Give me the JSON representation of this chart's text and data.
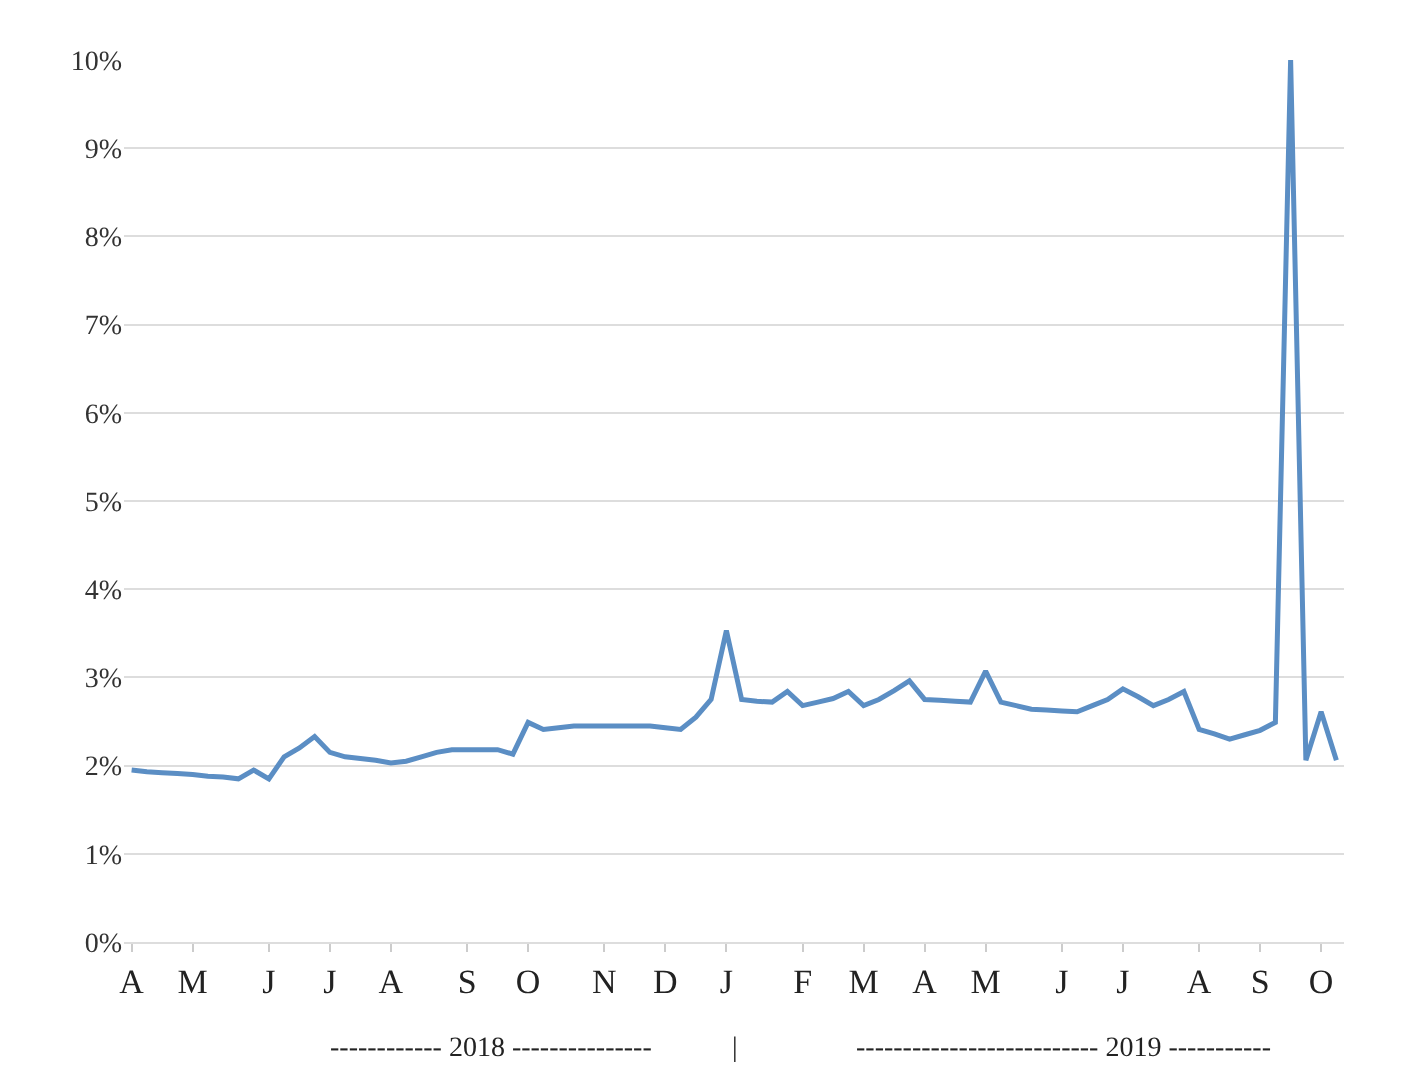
{
  "chart_data": {
    "type": "line",
    "categories": [
      "A",
      null,
      null,
      null,
      "M",
      null,
      null,
      null,
      null,
      "J",
      null,
      null,
      null,
      "J",
      null,
      null,
      null,
      "A",
      null,
      null,
      null,
      null,
      "S",
      null,
      null,
      null,
      "O",
      null,
      null,
      null,
      null,
      "N",
      null,
      null,
      null,
      "D",
      null,
      null,
      null,
      "J",
      null,
      null,
      null,
      null,
      "F",
      null,
      null,
      null,
      "M",
      null,
      null,
      null,
      "A",
      null,
      null,
      null,
      "M",
      null,
      null,
      null,
      null,
      "J",
      null,
      null,
      null,
      "J",
      null,
      null,
      null,
      null,
      "A",
      null,
      null,
      null,
      "S",
      null,
      null,
      null,
      "O",
      null
    ],
    "series": [
      {
        "color": "#5b8ec4",
        "values": [
          1.95,
          1.93,
          1.92,
          1.91,
          1.9,
          1.88,
          1.87,
          1.85,
          1.95,
          1.85,
          2.1,
          2.2,
          2.33,
          2.15,
          2.1,
          2.08,
          2.06,
          2.03,
          2.05,
          2.1,
          2.15,
          2.18,
          2.18,
          2.18,
          2.18,
          2.13,
          2.49,
          2.41,
          2.43,
          2.45,
          2.45,
          2.45,
          2.45,
          2.45,
          2.45,
          2.43,
          2.41,
          2.55,
          2.75,
          3.53,
          2.75,
          2.73,
          2.72,
          2.84,
          2.68,
          2.72,
          2.76,
          2.84,
          2.68,
          2.75,
          2.85,
          2.96,
          2.75,
          2.74,
          2.73,
          2.72,
          3.07,
          2.72,
          2.68,
          2.64,
          2.63,
          2.62,
          2.61,
          2.68,
          2.75,
          2.87,
          2.78,
          2.68,
          2.75,
          2.84,
          2.41,
          2.36,
          2.3,
          2.35,
          2.4,
          2.49,
          10.0,
          2.06,
          2.61,
          2.06
        ]
      }
    ],
    "ylim": [
      0,
      10
    ],
    "yticks": [
      {
        "value": 0,
        "label": "0%"
      },
      {
        "value": 1,
        "label": "1%"
      },
      {
        "value": 2,
        "label": "2%"
      },
      {
        "value": 3,
        "label": "3%"
      },
      {
        "value": 4,
        "label": "4%"
      },
      {
        "value": 5,
        "label": "5%"
      },
      {
        "value": 6,
        "label": "6%"
      },
      {
        "value": 7,
        "label": "7%"
      },
      {
        "value": 8,
        "label": "8%"
      },
      {
        "value": 9,
        "label": "9%"
      },
      {
        "value": 10,
        "label": "10%"
      }
    ],
    "grid": "y",
    "marker": "none",
    "line_style": "solid",
    "annotations": [
      "------------ 2018 ---------------",
      "|",
      "-------------------------- 2019 -----------"
    ]
  }
}
